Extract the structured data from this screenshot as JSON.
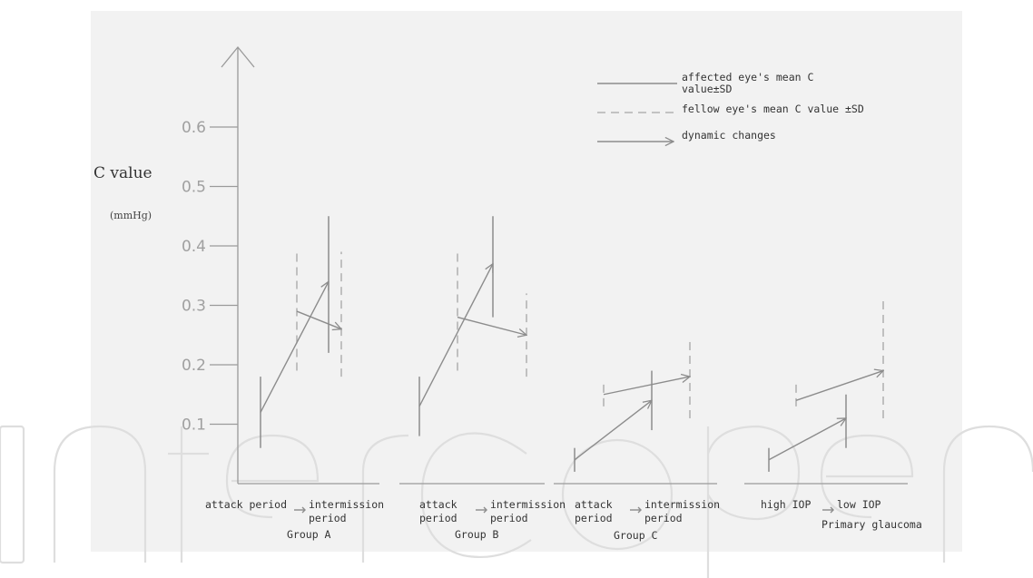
{
  "chart_data": {
    "type": "line",
    "ylabel": "C value",
    "yunit": "(mmHg)",
    "yticks": [
      0.1,
      0.2,
      0.3,
      0.4,
      0.5,
      0.6
    ],
    "ylim": [
      0,
      0.7
    ],
    "grid": false,
    "legend": {
      "placement": "top-right",
      "entries": [
        {
          "style": "solid",
          "line1": "affected eye's mean C",
          "line2": "value±SD"
        },
        {
          "style": "dashed",
          "line1": "fellow eye's mean C value ±SD",
          "line2": ""
        },
        {
          "style": "arrow",
          "line1": "dynamic changes",
          "line2": ""
        }
      ]
    },
    "groups": [
      {
        "name": "Group A",
        "start_label": [
          "attack period",
          ""
        ],
        "end_label": [
          "intermission",
          "period"
        ],
        "affected": {
          "start": {
            "mean": 0.12,
            "lo": 0.06,
            "hi": 0.18
          },
          "end": {
            "mean": 0.34,
            "lo": 0.22,
            "hi": 0.45
          }
        },
        "fellow": {
          "start": {
            "mean": 0.29,
            "lo": 0.19,
            "hi": 0.39
          },
          "end": {
            "mean": 0.26,
            "lo": 0.18,
            "hi": 0.39
          }
        }
      },
      {
        "name": "Group B",
        "start_label": [
          "attack",
          "period"
        ],
        "end_label": [
          "intermission",
          "period"
        ],
        "affected": {
          "start": {
            "mean": 0.13,
            "lo": 0.08,
            "hi": 0.18
          },
          "end": {
            "mean": 0.37,
            "lo": 0.28,
            "hi": 0.45
          }
        },
        "fellow": {
          "start": {
            "mean": 0.28,
            "lo": 0.19,
            "hi": 0.39
          },
          "end": {
            "mean": 0.25,
            "lo": 0.18,
            "hi": 0.32
          }
        }
      },
      {
        "name": "Group C",
        "start_label": [
          "attack",
          "period"
        ],
        "end_label": [
          "intermission",
          "period"
        ],
        "affected": {
          "start": {
            "mean": 0.04,
            "lo": 0.02,
            "hi": 0.06
          },
          "end": {
            "mean": 0.14,
            "lo": 0.09,
            "hi": 0.19
          }
        },
        "fellow": {
          "start": {
            "mean": 0.15,
            "lo": 0.13,
            "hi": 0.17
          },
          "end": {
            "mean": 0.18,
            "lo": 0.11,
            "hi": 0.24
          }
        }
      },
      {
        "name": "Primary glaucoma",
        "start_label": [
          "high IOP",
          ""
        ],
        "end_label": [
          "low IOP",
          ""
        ],
        "affected": {
          "start": {
            "mean": 0.04,
            "lo": 0.02,
            "hi": 0.06
          },
          "end": {
            "mean": 0.11,
            "lo": 0.06,
            "hi": 0.15
          }
        },
        "fellow": {
          "start": {
            "mean": 0.14,
            "lo": 0.13,
            "hi": 0.17
          },
          "end": {
            "mean": 0.19,
            "lo": 0.11,
            "hi": 0.31
          }
        }
      }
    ]
  }
}
